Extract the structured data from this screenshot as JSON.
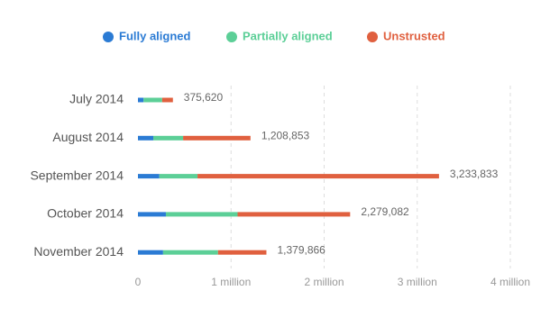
{
  "chart_data": {
    "type": "stacked-bar-horizontal",
    "categories": [
      "July 2014",
      "August 2014",
      "September 2014",
      "October 2014",
      "November 2014"
    ],
    "series": [
      {
        "name": "Fully aligned",
        "color": "#2b7bd4",
        "values": [
          60000,
          165000,
          230000,
          300000,
          270000
        ]
      },
      {
        "name": "Partially aligned",
        "color": "#5ccf97",
        "values": [
          200000,
          320000,
          410000,
          770000,
          590000
        ]
      },
      {
        "name": "Unstrusted",
        "color": "#e0603f",
        "values": [
          115620,
          723853,
          2593833,
          1209082,
          519866
        ]
      }
    ],
    "totals": {
      "values": [
        375620,
        1208853,
        3233833,
        2279082,
        1379866
      ],
      "value_labels": [
        "375,620",
        "1,208,853",
        "3,233,833",
        "2,279,082",
        "1,379,866"
      ]
    },
    "xlim": [
      0,
      4000000
    ],
    "xticks": [
      0,
      {
        "value": 1000000,
        "label": "1 million"
      },
      {
        "value": 2000000,
        "label": "2 million"
      },
      {
        "value": 3000000,
        "label": "3 million"
      },
      {
        "value": 4000000,
        "label": "4 million"
      }
    ],
    "grid": true
  }
}
